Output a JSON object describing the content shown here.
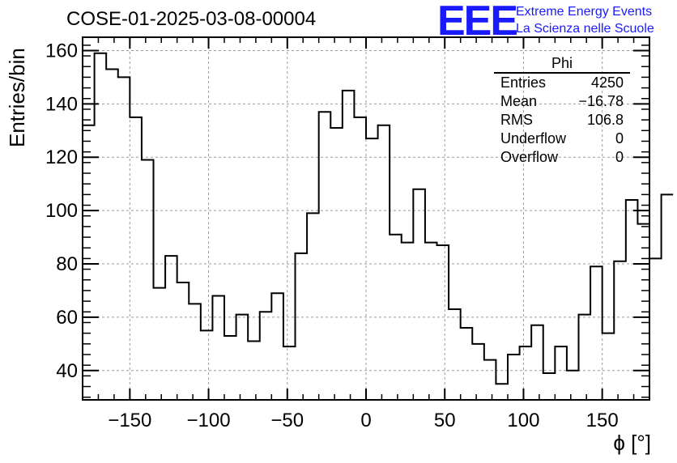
{
  "header": {
    "run_title": "COSE-01-2025-03-08-00004",
    "logo_text": "EEE",
    "logo_line1": "Extreme Energy Events",
    "logo_line2": "La Scienza nelle Scuole"
  },
  "stats_box": {
    "name": "Phi",
    "rows": [
      {
        "label": "Entries",
        "value": "4250"
      },
      {
        "label": "Mean",
        "value": "−16.78"
      },
      {
        "label": "RMS",
        "value": "106.8"
      },
      {
        "label": "Underflow",
        "value": "0"
      },
      {
        "label": "Overflow",
        "value": "0"
      }
    ]
  },
  "colors": {
    "line": "#000000",
    "grid": "#999999",
    "logo": "#1a1aff"
  },
  "chart_data": {
    "type": "histogram",
    "title": "COSE-01-2025-03-08-00004",
    "xlabel": "ϕ [°]",
    "ylabel": "Entries/bin",
    "xlim": [
      -180,
      180
    ],
    "ylim": [
      29,
      165
    ],
    "bin_width": 7.5,
    "x_ticks": [
      -150,
      -100,
      -50,
      0,
      50,
      100,
      150
    ],
    "x_tick_labels": [
      "−150",
      "−100",
      "−50",
      "0",
      "50",
      "100",
      "150"
    ],
    "y_ticks": [
      40,
      60,
      80,
      100,
      120,
      140,
      160
    ],
    "y_tick_labels": [
      "40",
      "60",
      "80",
      "100",
      "120",
      "140",
      "160"
    ],
    "grid": true,
    "values": [
      132,
      159,
      153,
      150,
      135,
      119,
      71,
      83,
      73,
      65,
      55,
      68,
      53,
      61,
      51,
      62,
      69,
      49,
      84,
      99,
      137,
      131,
      145,
      135,
      127,
      132,
      91,
      88,
      108,
      88,
      87,
      63,
      56,
      50,
      44,
      35,
      46,
      49,
      57,
      39,
      49,
      40,
      61,
      79,
      54,
      81,
      104,
      95,
      82,
      106
    ]
  }
}
